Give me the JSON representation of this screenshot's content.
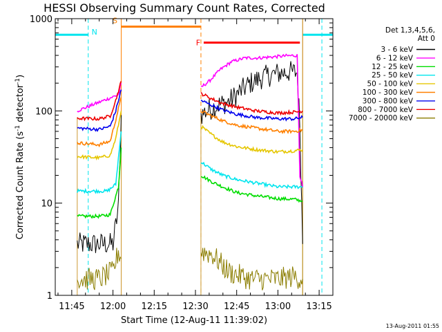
{
  "chart_data": {
    "type": "line",
    "title": "HESSI Observing Summary Count Rates, Corrected",
    "xlabel": "Start Time (12-Aug-11 11:39:02)",
    "ylabel_main": "Corrected Count Rate (s",
    "ylabel_sup1": "-1",
    "ylabel_mid": " detector",
    "ylabel_sup2": "-1",
    "ylabel_end": ")",
    "y_scale": "log",
    "ylim": [
      1,
      1000
    ],
    "xlim": [
      "11:39",
      "13:20"
    ],
    "x_ticks": [
      "11:45",
      "12:00",
      "12:15",
      "12:30",
      "12:45",
      "13:00",
      "13:15"
    ],
    "y_ticks": [
      "1",
      "10",
      "100",
      "1000"
    ],
    "grid": false,
    "legend_position": "top-right",
    "legend_header": [
      "Det 1,3,4,5,6,",
      "Att 0"
    ],
    "timestamp": "13-Aug-2011 01:55",
    "bands": [
      {
        "label": "N",
        "type": "night",
        "color": "#00e5ee",
        "segments": [
          [
            "11:39",
            "11:51"
          ],
          [
            "13:09",
            "13:20"
          ]
        ],
        "level": 670
      },
      {
        "label": "S",
        "type": "saa",
        "color": "#ff8000",
        "segments": [
          [
            "12:03",
            "12:32"
          ]
        ],
        "level": 820
      },
      {
        "label": "F",
        "type": "flare",
        "color": "#ff0000",
        "segments": [
          [
            "12:33",
            "13:08"
          ]
        ],
        "level": 550
      }
    ],
    "event_markers": [
      {
        "time": "11:51",
        "color": "#00e5ee",
        "style": "dashed"
      },
      {
        "time": "12:03",
        "color": "#ff8000",
        "style": "solid"
      },
      {
        "time": "12:32",
        "color": "#ff8000",
        "style": "dashed"
      },
      {
        "time": "13:09",
        "color": "#00e5ee",
        "style": "solid"
      },
      {
        "time": "13:09",
        "color": "#ff8000",
        "style": "solid"
      },
      {
        "time": "13:16",
        "color": "#00e5ee",
        "style": "dashed"
      }
    ],
    "data_windows": [
      [
        "11:47",
        "12:03"
      ],
      [
        "12:32",
        "13:09"
      ]
    ],
    "series": [
      {
        "name": "3 - 6 keV",
        "color": "#000000",
        "points": [
          [
            "11:47",
            3.6
          ],
          [
            "11:55",
            3.6
          ],
          [
            "12:00",
            3.6
          ],
          [
            "12:02",
            9
          ],
          [
            "12:03",
            90
          ],
          [
            "12:32",
            90
          ],
          [
            "12:34",
            100
          ],
          [
            "12:38",
            115
          ],
          [
            "12:42",
            125
          ],
          [
            "12:46",
            160
          ],
          [
            "12:50",
            200
          ],
          [
            "12:55",
            235
          ],
          [
            "13:00",
            255
          ],
          [
            "13:04",
            265
          ],
          [
            "13:07",
            260
          ],
          [
            "13:08",
            70
          ],
          [
            "13:09",
            3.6
          ]
        ]
      },
      {
        "name": "6 - 12 keV",
        "color": "#ff00ff",
        "points": [
          [
            "11:47",
            100
          ],
          [
            "12:02",
            150
          ],
          [
            "12:03",
            200
          ],
          [
            "12:32",
            180
          ],
          [
            "12:35",
            210
          ],
          [
            "12:39",
            280
          ],
          [
            "12:43",
            340
          ],
          [
            "12:48",
            375
          ],
          [
            "12:53",
            375
          ],
          [
            "12:58",
            385
          ],
          [
            "13:03",
            395
          ],
          [
            "13:07",
            400
          ],
          [
            "13:08",
            20
          ],
          [
            "13:09",
            15
          ]
        ]
      },
      {
        "name": "12 - 25 keV",
        "color": "#00dd00",
        "points": [
          [
            "11:47",
            7.2
          ],
          [
            "11:55",
            7.2
          ],
          [
            "11:59",
            7.5
          ],
          [
            "12:02",
            15
          ],
          [
            "12:03",
            40
          ],
          [
            "12:32",
            20
          ],
          [
            "12:36",
            17
          ],
          [
            "12:40",
            15
          ],
          [
            "12:45",
            13
          ],
          [
            "12:52",
            12
          ],
          [
            "13:00",
            11.2
          ],
          [
            "13:06",
            11
          ],
          [
            "13:09",
            10.5
          ]
        ]
      },
      {
        "name": "25 - 50 keV",
        "color": "#00e5ee",
        "points": [
          [
            "11:47",
            13.5
          ],
          [
            "11:58",
            13.5
          ],
          [
            "12:01",
            16
          ],
          [
            "12:03",
            60
          ],
          [
            "12:32",
            28
          ],
          [
            "12:36",
            23
          ],
          [
            "12:40",
            20
          ],
          [
            "12:45",
            18
          ],
          [
            "12:52",
            16.5
          ],
          [
            "13:00",
            15
          ],
          [
            "13:06",
            15
          ],
          [
            "13:09",
            15
          ]
        ]
      },
      {
        "name": "50 - 100 keV",
        "color": "#e5c600",
        "points": [
          [
            "11:47",
            32
          ],
          [
            "11:55",
            31
          ],
          [
            "11:59",
            33
          ],
          [
            "12:01",
            50
          ],
          [
            "12:03",
            100
          ],
          [
            "12:32",
            68
          ],
          [
            "12:36",
            55
          ],
          [
            "12:40",
            46
          ],
          [
            "12:45",
            41
          ],
          [
            "12:52",
            38
          ],
          [
            "13:00",
            36
          ],
          [
            "13:06",
            37
          ],
          [
            "13:09",
            38
          ]
        ]
      },
      {
        "name": "100 - 300 keV",
        "color": "#ff8000",
        "points": [
          [
            "11:47",
            45
          ],
          [
            "11:55",
            43
          ],
          [
            "11:59",
            47
          ],
          [
            "12:01",
            80
          ],
          [
            "12:03",
            140
          ],
          [
            "12:32",
            100
          ],
          [
            "12:36",
            88
          ],
          [
            "12:40",
            78
          ],
          [
            "12:45",
            70
          ],
          [
            "12:52",
            65
          ],
          [
            "13:00",
            60
          ],
          [
            "13:06",
            60
          ],
          [
            "13:09",
            62
          ]
        ]
      },
      {
        "name": "300 - 800 keV",
        "color": "#0000ee",
        "points": [
          [
            "11:47",
            65
          ],
          [
            "11:55",
            63
          ],
          [
            "11:59",
            68
          ],
          [
            "12:01",
            100
          ],
          [
            "12:03",
            170
          ],
          [
            "12:32",
            130
          ],
          [
            "12:36",
            115
          ],
          [
            "12:40",
            102
          ],
          [
            "12:45",
            92
          ],
          [
            "12:52",
            85
          ],
          [
            "13:00",
            82
          ],
          [
            "13:06",
            82
          ],
          [
            "13:09",
            85
          ]
        ]
      },
      {
        "name": "800 - 7000 keV",
        "color": "#ee0000",
        "points": [
          [
            "11:47",
            83
          ],
          [
            "11:55",
            82
          ],
          [
            "11:59",
            88
          ],
          [
            "12:01",
            130
          ],
          [
            "12:03",
            210
          ],
          [
            "12:32",
            155
          ],
          [
            "12:36",
            135
          ],
          [
            "12:40",
            120
          ],
          [
            "12:45",
            110
          ],
          [
            "12:52",
            100
          ],
          [
            "13:00",
            95
          ],
          [
            "13:06",
            97
          ],
          [
            "13:09",
            100
          ]
        ]
      },
      {
        "name": "7000 - 20000 keV",
        "color": "#8b7d00",
        "points": [
          [
            "11:47",
            1.5
          ],
          [
            "11:55",
            1.5
          ],
          [
            "12:00",
            1.8
          ],
          [
            "12:02",
            3
          ],
          [
            "12:03",
            2.5
          ],
          [
            "12:32",
            3
          ],
          [
            "12:36",
            2.8
          ],
          [
            "12:42",
            1.8
          ],
          [
            "12:50",
            1.5
          ],
          [
            "13:00",
            1.5
          ],
          [
            "13:06",
            1.6
          ],
          [
            "13:09",
            1.5
          ]
        ]
      }
    ]
  }
}
